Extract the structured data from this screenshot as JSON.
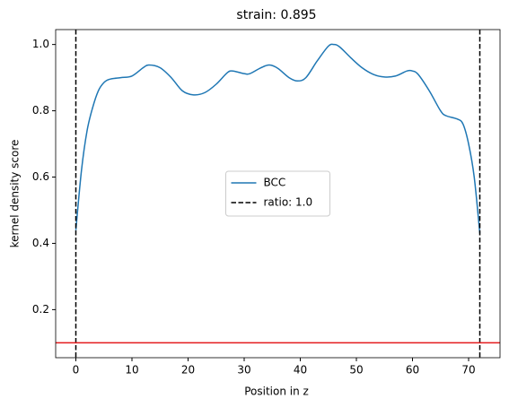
{
  "chart_data": {
    "type": "line",
    "title": "strain: 0.895",
    "x_label": "Position in z",
    "y_label": "kernel density score",
    "xlim": [
      -3.6,
      75.6
    ],
    "ylim": [
      0.055,
      1.045
    ],
    "xticks": [
      0,
      10,
      20,
      30,
      40,
      50,
      60,
      70
    ],
    "yticks": [
      {
        "value": 0.2,
        "label": "0.2"
      },
      {
        "value": 0.4,
        "label": "0.4"
      },
      {
        "value": 0.6,
        "label": "0.6"
      },
      {
        "value": 0.8,
        "label": "0.8"
      },
      {
        "value": 1,
        "label": "1.0"
      }
    ],
    "legend": "center",
    "series": [
      {
        "name": "BCC",
        "color": "#1f77b4",
        "x": [
          0,
          1,
          2,
          3,
          4,
          5,
          6,
          8,
          10,
          12,
          13,
          15,
          17,
          19,
          21,
          23,
          25,
          27,
          28,
          30,
          31,
          33,
          34.5,
          36,
          38,
          39.5,
          41,
          43,
          45,
          46,
          47,
          49,
          51,
          53,
          55,
          57,
          59,
          60,
          61,
          63,
          65,
          66,
          68,
          69,
          70,
          71,
          72
        ],
        "values": [
          0.44,
          0.62,
          0.74,
          0.81,
          0.86,
          0.885,
          0.895,
          0.9,
          0.905,
          0.93,
          0.938,
          0.93,
          0.9,
          0.86,
          0.848,
          0.855,
          0.88,
          0.915,
          0.92,
          0.912,
          0.912,
          0.93,
          0.938,
          0.928,
          0.9,
          0.89,
          0.9,
          0.95,
          0.995,
          1.0,
          0.993,
          0.96,
          0.93,
          0.91,
          0.902,
          0.905,
          0.92,
          0.92,
          0.91,
          0.86,
          0.8,
          0.785,
          0.775,
          0.76,
          0.7,
          0.6,
          0.43
        ]
      }
    ],
    "vlines": {
      "name": "ratio: 1.0",
      "color": "#000000",
      "values": [
        0,
        72
      ]
    },
    "hlines": {
      "color": "#e41a1c",
      "values": [
        0.1
      ]
    }
  }
}
